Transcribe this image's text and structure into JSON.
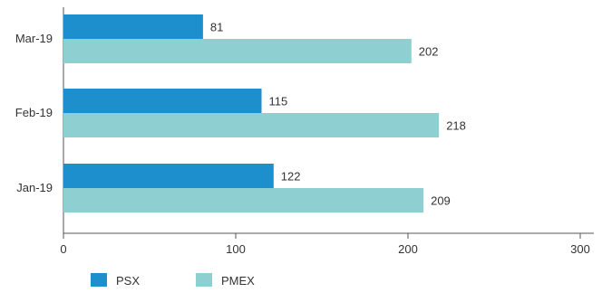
{
  "chart_data": {
    "type": "bar",
    "orientation": "horizontal",
    "title": "",
    "xlabel": "",
    "ylabel": "",
    "categories": [
      "Mar-19",
      "Feb-19",
      "Jan-19"
    ],
    "series": [
      {
        "name": "PSX",
        "values": [
          81,
          115,
          122
        ],
        "color": "#1c8fcc"
      },
      {
        "name": "PMEX",
        "values": [
          202,
          218,
          209
        ],
        "color": "#8ecfd1"
      }
    ],
    "xlim": [
      0,
      300
    ],
    "x_ticks": [
      0,
      100,
      200,
      300
    ],
    "grid": false,
    "legend_position": "bottom-left",
    "data_labels": true
  }
}
